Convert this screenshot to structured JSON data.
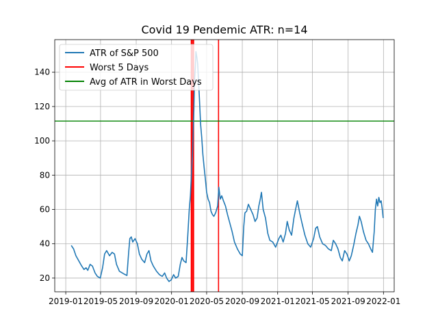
{
  "chart_data": {
    "type": "line",
    "title": "Covid 19 Pendemic ATR: n=14",
    "xlabel": "",
    "ylabel": "",
    "xlim": [
      "2018-11-24",
      "2022-02-07"
    ],
    "ylim": [
      12,
      159
    ],
    "grid": true,
    "legend_position": "top-left",
    "x_ticks": [
      {
        "date": "2019-01-01",
        "label": "2019-01"
      },
      {
        "date": "2019-05-01",
        "label": "2019-05"
      },
      {
        "date": "2019-09-01",
        "label": "2019-09"
      },
      {
        "date": "2020-01-01",
        "label": "2020-01"
      },
      {
        "date": "2020-05-01",
        "label": "2020-05"
      },
      {
        "date": "2020-09-01",
        "label": "2020-09"
      },
      {
        "date": "2021-01-01",
        "label": "2021-01"
      },
      {
        "date": "2021-05-01",
        "label": "2021-05"
      },
      {
        "date": "2021-09-01",
        "label": "2021-09"
      },
      {
        "date": "2022-01-01",
        "label": "2022-01"
      }
    ],
    "y_ticks": [
      20,
      40,
      60,
      80,
      100,
      120,
      140
    ],
    "series": [
      {
        "name": "ATR of S&P 500",
        "color": "#1f77b4",
        "points": [
          [
            "2019-01-20",
            39
          ],
          [
            "2019-01-28",
            37
          ],
          [
            "2019-02-05",
            33
          ],
          [
            "2019-02-15",
            30
          ],
          [
            "2019-02-25",
            27
          ],
          [
            "2019-03-05",
            25
          ],
          [
            "2019-03-12",
            26
          ],
          [
            "2019-03-18",
            24.5
          ],
          [
            "2019-03-26",
            28
          ],
          [
            "2019-04-03",
            27
          ],
          [
            "2019-04-12",
            23
          ],
          [
            "2019-04-20",
            21
          ],
          [
            "2019-04-30",
            20
          ],
          [
            "2019-05-08",
            26
          ],
          [
            "2019-05-15",
            34
          ],
          [
            "2019-05-22",
            36
          ],
          [
            "2019-06-01",
            33
          ],
          [
            "2019-06-10",
            35
          ],
          [
            "2019-06-18",
            34
          ],
          [
            "2019-06-25",
            28
          ],
          [
            "2019-07-05",
            24
          ],
          [
            "2019-07-15",
            23
          ],
          [
            "2019-07-25",
            22
          ],
          [
            "2019-07-31",
            21.5
          ],
          [
            "2019-08-06",
            35
          ],
          [
            "2019-08-10",
            43
          ],
          [
            "2019-08-15",
            44
          ],
          [
            "2019-08-20",
            41
          ],
          [
            "2019-08-28",
            43
          ],
          [
            "2019-09-05",
            40
          ],
          [
            "2019-09-12",
            34
          ],
          [
            "2019-09-20",
            31
          ],
          [
            "2019-09-30",
            29
          ],
          [
            "2019-10-08",
            34
          ],
          [
            "2019-10-15",
            36
          ],
          [
            "2019-10-22",
            30
          ],
          [
            "2019-10-30",
            27
          ],
          [
            "2019-11-10",
            24
          ],
          [
            "2019-11-20",
            22
          ],
          [
            "2019-11-30",
            21
          ],
          [
            "2019-12-08",
            23
          ],
          [
            "2019-12-15",
            20
          ],
          [
            "2019-12-23",
            18
          ],
          [
            "2019-12-31",
            19
          ],
          [
            "2020-01-08",
            22
          ],
          [
            "2020-01-15",
            20
          ],
          [
            "2020-01-24",
            21
          ],
          [
            "2020-01-31",
            28
          ],
          [
            "2020-02-06",
            32
          ],
          [
            "2020-02-12",
            30
          ],
          [
            "2020-02-20",
            29
          ],
          [
            "2020-02-26",
            45
          ],
          [
            "2020-03-02",
            60
          ],
          [
            "2020-03-06",
            68
          ],
          [
            "2020-03-10",
            82
          ],
          [
            "2020-03-14",
            96
          ],
          [
            "2020-03-18",
            118
          ],
          [
            "2020-03-20",
            135
          ],
          [
            "2020-03-23",
            143
          ],
          [
            "2020-03-25",
            152
          ],
          [
            "2020-03-28",
            149
          ],
          [
            "2020-03-31",
            145
          ],
          [
            "2020-04-03",
            135
          ],
          [
            "2020-04-06",
            125
          ],
          [
            "2020-04-10",
            110
          ],
          [
            "2020-04-14",
            102
          ],
          [
            "2020-04-18",
            92
          ],
          [
            "2020-04-22",
            85
          ],
          [
            "2020-04-27",
            77
          ],
          [
            "2020-05-01",
            70
          ],
          [
            "2020-05-06",
            66
          ],
          [
            "2020-05-11",
            64
          ],
          [
            "2020-05-16",
            59
          ],
          [
            "2020-05-21",
            57
          ],
          [
            "2020-05-26",
            56
          ],
          [
            "2020-06-01",
            58
          ],
          [
            "2020-06-08",
            62
          ],
          [
            "2020-06-12",
            73
          ],
          [
            "2020-06-17",
            66
          ],
          [
            "2020-06-22",
            68
          ],
          [
            "2020-06-28",
            65
          ],
          [
            "2020-07-05",
            62
          ],
          [
            "2020-07-12",
            57
          ],
          [
            "2020-07-20",
            52
          ],
          [
            "2020-07-28",
            47
          ],
          [
            "2020-08-05",
            41
          ],
          [
            "2020-08-15",
            37
          ],
          [
            "2020-08-25",
            34
          ],
          [
            "2020-09-01",
            33
          ],
          [
            "2020-09-06",
            50
          ],
          [
            "2020-09-10",
            58
          ],
          [
            "2020-09-16",
            59
          ],
          [
            "2020-09-22",
            63
          ],
          [
            "2020-09-30",
            60
          ],
          [
            "2020-10-08",
            57
          ],
          [
            "2020-10-15",
            53
          ],
          [
            "2020-10-22",
            55
          ],
          [
            "2020-10-28",
            62
          ],
          [
            "2020-11-02",
            66
          ],
          [
            "2020-11-06",
            70
          ],
          [
            "2020-11-12",
            60
          ],
          [
            "2020-11-20",
            55
          ],
          [
            "2020-11-28",
            46
          ],
          [
            "2020-12-05",
            42
          ],
          [
            "2020-12-15",
            41
          ],
          [
            "2020-12-25",
            38
          ],
          [
            "2021-01-05",
            43
          ],
          [
            "2021-01-12",
            45
          ],
          [
            "2021-01-20",
            41
          ],
          [
            "2021-01-28",
            46
          ],
          [
            "2021-02-03",
            53
          ],
          [
            "2021-02-10",
            48
          ],
          [
            "2021-02-18",
            45
          ],
          [
            "2021-02-26",
            55
          ],
          [
            "2021-03-05",
            61
          ],
          [
            "2021-03-10",
            65
          ],
          [
            "2021-03-18",
            58
          ],
          [
            "2021-03-26",
            52
          ],
          [
            "2021-04-05",
            45
          ],
          [
            "2021-04-15",
            40
          ],
          [
            "2021-04-25",
            38
          ],
          [
            "2021-05-05",
            43
          ],
          [
            "2021-05-12",
            49
          ],
          [
            "2021-05-18",
            50
          ],
          [
            "2021-05-26",
            44
          ],
          [
            "2021-06-05",
            40
          ],
          [
            "2021-06-15",
            39
          ],
          [
            "2021-06-25",
            37
          ],
          [
            "2021-07-05",
            36
          ],
          [
            "2021-07-12",
            42
          ],
          [
            "2021-07-20",
            40
          ],
          [
            "2021-07-28",
            37
          ],
          [
            "2021-08-05",
            32
          ],
          [
            "2021-08-12",
            30
          ],
          [
            "2021-08-20",
            36
          ],
          [
            "2021-08-28",
            34
          ],
          [
            "2021-09-05",
            30
          ],
          [
            "2021-09-12",
            33
          ],
          [
            "2021-09-20",
            39
          ],
          [
            "2021-09-28",
            46
          ],
          [
            "2021-10-05",
            51
          ],
          [
            "2021-10-10",
            56
          ],
          [
            "2021-10-16",
            53
          ],
          [
            "2021-10-24",
            47
          ],
          [
            "2021-11-02",
            42
          ],
          [
            "2021-11-10",
            40
          ],
          [
            "2021-11-18",
            37
          ],
          [
            "2021-11-24",
            35
          ],
          [
            "2021-11-30",
            47
          ],
          [
            "2021-12-04",
            60
          ],
          [
            "2021-12-08",
            66
          ],
          [
            "2021-12-12",
            62
          ],
          [
            "2021-12-16",
            67
          ],
          [
            "2021-12-20",
            64
          ],
          [
            "2021-12-24",
            65
          ],
          [
            "2021-12-28",
            60
          ],
          [
            "2021-12-31",
            55
          ]
        ]
      },
      {
        "name": "Worst 5 Days",
        "color": "#ff0000",
        "vlines": [
          "2020-03-09",
          "2020-03-12",
          "2020-03-16",
          "2020-03-17",
          "2020-06-11"
        ]
      },
      {
        "name": "Avg of ATR in Worst Days",
        "color": "#008000",
        "hline": 111.5
      }
    ]
  }
}
